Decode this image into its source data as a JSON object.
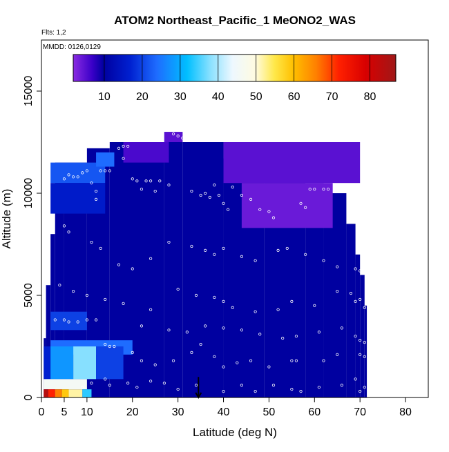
{
  "chart_data": {
    "type": "heatmap",
    "title": "ATOM2 Northeast_Pacific_1 MeONO2_WAS",
    "subtitle_flights": "Flts: 1,2",
    "subtitle_dates": "MMDD: 0126,0129",
    "xlabel": "Latitude (deg N)",
    "ylabel": "Altitude (m)",
    "xlim": [
      0,
      85
    ],
    "ylim": [
      0,
      17500
    ],
    "x_ticks": [
      0,
      5,
      10,
      20,
      30,
      40,
      50,
      60,
      70,
      80
    ],
    "y_ticks": [
      0,
      5000,
      10000,
      15000
    ],
    "colorbar": {
      "range": [
        0,
        85
      ],
      "ticks": [
        10,
        20,
        30,
        40,
        50,
        60,
        70,
        80
      ],
      "stops": [
        {
          "v": 0,
          "c": "#8a2be2"
        },
        {
          "v": 5,
          "c": "#3a00c8"
        },
        {
          "v": 8,
          "c": "#0000a0"
        },
        {
          "v": 15,
          "c": "#0020d0"
        },
        {
          "v": 22,
          "c": "#1e6cff"
        },
        {
          "v": 30,
          "c": "#00bfff"
        },
        {
          "v": 36,
          "c": "#87e0ff"
        },
        {
          "v": 42,
          "c": "#eef8ff"
        },
        {
          "v": 48,
          "c": "#fffbe0"
        },
        {
          "v": 53,
          "c": "#ffe84a"
        },
        {
          "v": 58,
          "c": "#ffc000"
        },
        {
          "v": 64,
          "c": "#ff8000"
        },
        {
          "v": 70,
          "c": "#ff2000"
        },
        {
          "v": 77,
          "c": "#d80000"
        },
        {
          "v": 85,
          "c": "#a01818"
        }
      ]
    },
    "column_extents": [
      {
        "lat": [
          0.5,
          1
        ],
        "alt_top": 2900
      },
      {
        "lat": [
          1,
          2
        ],
        "alt_top": 5500
      },
      {
        "lat": [
          2,
          3
        ],
        "alt_top": 8000
      },
      {
        "lat": [
          3,
          5
        ],
        "alt_top": 11500
      },
      {
        "lat": [
          5,
          10
        ],
        "alt_top": 11500
      },
      {
        "lat": [
          10,
          15
        ],
        "alt_top": 12200
      },
      {
        "lat": [
          15,
          27
        ],
        "alt_top": 12500
      },
      {
        "lat": [
          27,
          31
        ],
        "alt_top": 13000
      },
      {
        "lat": [
          31,
          40
        ],
        "alt_top": 12500
      },
      {
        "lat": [
          40,
          49
        ],
        "alt_top": 11700
      },
      {
        "lat": [
          49,
          58
        ],
        "alt_top": 11000
      },
      {
        "lat": [
          58,
          62
        ],
        "alt_top": 10500
      },
      {
        "lat": [
          62,
          67
        ],
        "alt_top": 10000
      },
      {
        "lat": [
          67,
          69
        ],
        "alt_top": 8500
      },
      {
        "lat": [
          69,
          70
        ],
        "alt_top": 7000
      },
      {
        "lat": [
          70,
          71
        ],
        "alt_top": 6000
      },
      {
        "lat": [
          71,
          71.5
        ],
        "alt_top": 4500
      }
    ],
    "background_value": 8,
    "patches": [
      {
        "lat": [
          40,
          70
        ],
        "alt": [
          10500,
          12500
        ],
        "value": 3
      },
      {
        "lat": [
          44,
          64
        ],
        "alt": [
          8300,
          10500
        ],
        "value": 2
      },
      {
        "lat": [
          18,
          28
        ],
        "alt": [
          11500,
          12500
        ],
        "value": 4
      },
      {
        "lat": [
          27,
          31
        ],
        "alt": [
          12500,
          13000
        ],
        "value": 3
      },
      {
        "lat": [
          2,
          14
        ],
        "alt": [
          10500,
          11500
        ],
        "value": 20
      },
      {
        "lat": [
          2,
          14
        ],
        "alt": [
          9000,
          10500
        ],
        "value": 14
      },
      {
        "lat": [
          12,
          16
        ],
        "alt": [
          11300,
          12000
        ],
        "value": 22
      },
      {
        "lat": [
          2,
          10
        ],
        "alt": [
          3300,
          4200
        ],
        "value": 18
      },
      {
        "lat": [
          2,
          20
        ],
        "alt": [
          2100,
          2800
        ],
        "value": 22
      },
      {
        "lat": [
          1,
          7
        ],
        "alt": [
          900,
          2500
        ],
        "value": 26
      },
      {
        "lat": [
          7,
          12
        ],
        "alt": [
          900,
          2500
        ],
        "value": 36
      },
      {
        "lat": [
          12,
          18
        ],
        "alt": [
          900,
          2500
        ],
        "value": 18
      },
      {
        "lat": [
          0.5,
          2
        ],
        "alt": [
          900,
          2500
        ],
        "value": 15
      },
      {
        "lat": [
          0.5,
          10
        ],
        "alt": [
          400,
          900
        ],
        "value": 44
      },
      {
        "lat": [
          0.5,
          1.5
        ],
        "alt": [
          0,
          400
        ],
        "value": 82
      },
      {
        "lat": [
          1.5,
          3
        ],
        "alt": [
          0,
          400
        ],
        "value": 70
      },
      {
        "lat": [
          3,
          4.5
        ],
        "alt": [
          0,
          400
        ],
        "value": 64
      },
      {
        "lat": [
          4.5,
          6
        ],
        "alt": [
          0,
          400
        ],
        "value": 57
      },
      {
        "lat": [
          6,
          9
        ],
        "alt": [
          0,
          400
        ],
        "value": 50
      },
      {
        "lat": [
          9,
          11
        ],
        "alt": [
          0,
          400
        ],
        "value": 32
      }
    ],
    "sample_points": [
      [
        5,
        10700
      ],
      [
        6,
        10900
      ],
      [
        7,
        10800
      ],
      [
        8,
        10800
      ],
      [
        9,
        11000
      ],
      [
        10,
        11100
      ],
      [
        11,
        10500
      ],
      [
        12,
        10100
      ],
      [
        12,
        9700
      ],
      [
        13,
        11100
      ],
      [
        14,
        11100
      ],
      [
        15,
        11100
      ],
      [
        17,
        12200
      ],
      [
        18,
        12300
      ],
      [
        18,
        11700
      ],
      [
        19,
        12300
      ],
      [
        20,
        10700
      ],
      [
        21,
        10600
      ],
      [
        22,
        10200
      ],
      [
        23,
        10600
      ],
      [
        24,
        10600
      ],
      [
        25,
        10100
      ],
      [
        26,
        10600
      ],
      [
        28,
        10400
      ],
      [
        29,
        12900
      ],
      [
        30,
        12800
      ],
      [
        31,
        12700
      ],
      [
        33,
        10100
      ],
      [
        35,
        9900
      ],
      [
        36,
        10000
      ],
      [
        37,
        9800
      ],
      [
        38,
        10400
      ],
      [
        39,
        9900
      ],
      [
        40,
        9500
      ],
      [
        41,
        9200
      ],
      [
        42,
        10300
      ],
      [
        44,
        9900
      ],
      [
        46,
        9700
      ],
      [
        48,
        9200
      ],
      [
        50,
        9100
      ],
      [
        51,
        8800
      ],
      [
        57,
        9500
      ],
      [
        58,
        9300
      ],
      [
        59,
        10200
      ],
      [
        60,
        10200
      ],
      [
        62,
        10200
      ],
      [
        63,
        10200
      ],
      [
        66,
        10300
      ],
      [
        67,
        10400
      ],
      [
        5,
        8400
      ],
      [
        6,
        8100
      ],
      [
        11,
        7600
      ],
      [
        13,
        7300
      ],
      [
        17,
        6500
      ],
      [
        20,
        6300
      ],
      [
        24,
        6800
      ],
      [
        28,
        7600
      ],
      [
        33,
        7400
      ],
      [
        36,
        7200
      ],
      [
        38,
        7000
      ],
      [
        40,
        7300
      ],
      [
        44,
        6900
      ],
      [
        47,
        6700
      ],
      [
        52,
        7200
      ],
      [
        54,
        7300
      ],
      [
        58,
        7000
      ],
      [
        62,
        6700
      ],
      [
        65,
        6400
      ],
      [
        69,
        6300
      ],
      [
        70,
        6200
      ],
      [
        4,
        5500
      ],
      [
        7,
        5200
      ],
      [
        10,
        5000
      ],
      [
        14,
        4800
      ],
      [
        18,
        4600
      ],
      [
        24,
        4300
      ],
      [
        30,
        5300
      ],
      [
        34,
        5000
      ],
      [
        38,
        4900
      ],
      [
        40,
        4700
      ],
      [
        42,
        4400
      ],
      [
        47,
        4200
      ],
      [
        52,
        4300
      ],
      [
        55,
        4700
      ],
      [
        60,
        4500
      ],
      [
        65,
        5200
      ],
      [
        68,
        5100
      ],
      [
        69,
        4700
      ],
      [
        70,
        4800
      ],
      [
        71,
        4400
      ],
      [
        3,
        3800
      ],
      [
        5,
        3800
      ],
      [
        6,
        3700
      ],
      [
        8,
        3700
      ],
      [
        10,
        3800
      ],
      [
        12,
        3800
      ],
      [
        22,
        3500
      ],
      [
        28,
        3300
      ],
      [
        32,
        3200
      ],
      [
        36,
        3500
      ],
      [
        40,
        3400
      ],
      [
        44,
        3300
      ],
      [
        48,
        3100
      ],
      [
        53,
        2900
      ],
      [
        56,
        3000
      ],
      [
        61,
        3200
      ],
      [
        66,
        3400
      ],
      [
        69,
        3000
      ],
      [
        70,
        2800
      ],
      [
        71,
        2700
      ],
      [
        14,
        2600
      ],
      [
        15,
        2500
      ],
      [
        16,
        2500
      ],
      [
        20,
        2200
      ],
      [
        22,
        1800
      ],
      [
        25,
        1600
      ],
      [
        29,
        1800
      ],
      [
        33,
        2200
      ],
      [
        35,
        2600
      ],
      [
        38,
        2000
      ],
      [
        40,
        1500
      ],
      [
        43,
        1700
      ],
      [
        46,
        1800
      ],
      [
        50,
        1500
      ],
      [
        55,
        1800
      ],
      [
        56,
        1800
      ],
      [
        62,
        1800
      ],
      [
        65,
        2100
      ],
      [
        70,
        2100
      ],
      [
        71,
        2000
      ],
      [
        9,
        500
      ],
      [
        11,
        700
      ],
      [
        14,
        900
      ],
      [
        15,
        600
      ],
      [
        19,
        700
      ],
      [
        21,
        500
      ],
      [
        24,
        800
      ],
      [
        27,
        700
      ],
      [
        30,
        400
      ],
      [
        34,
        600
      ],
      [
        40,
        300
      ],
      [
        44,
        600
      ],
      [
        47,
        300
      ],
      [
        51,
        600
      ],
      [
        55,
        400
      ],
      [
        57,
        300
      ],
      [
        61,
        500
      ],
      [
        66,
        600
      ],
      [
        69,
        900
      ],
      [
        70,
        300
      ],
      [
        71,
        500
      ]
    ],
    "arrow_marker": {
      "lat": 34.5,
      "alt_from": 600,
      "alt_to": 0
    }
  }
}
